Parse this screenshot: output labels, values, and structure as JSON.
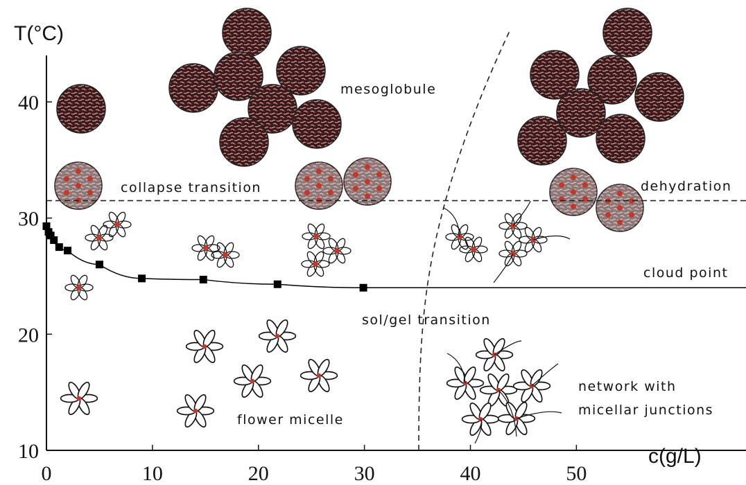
{
  "chart_data": {
    "type": "scatter",
    "x_label": "c(g/L)",
    "y_label": "T(°C)",
    "xlim": [
      0,
      66
    ],
    "ylim": [
      10,
      44
    ],
    "xticks": [
      0,
      10,
      20,
      30,
      40,
      50
    ],
    "yticks": [
      10,
      20,
      30,
      40
    ],
    "series": [
      {
        "color": "#000000",
        "x": [
          0,
          0.2,
          0.4,
          0.7,
          1.2,
          2,
          5,
          9,
          14.8,
          21.8,
          29.9
        ],
        "values": [
          29.3,
          28.8,
          28.5,
          28.1,
          27.5,
          27.2,
          26,
          24.8,
          24.7,
          24.3,
          24
        ]
      }
    ],
    "collapse_line": 31.5,
    "annotations": [
      "mesoglobule",
      "collapse transition",
      "dehydration",
      "cloud point",
      "sol/gel transition",
      "flower micelle",
      "network with",
      "micellar junctions"
    ]
  }
}
